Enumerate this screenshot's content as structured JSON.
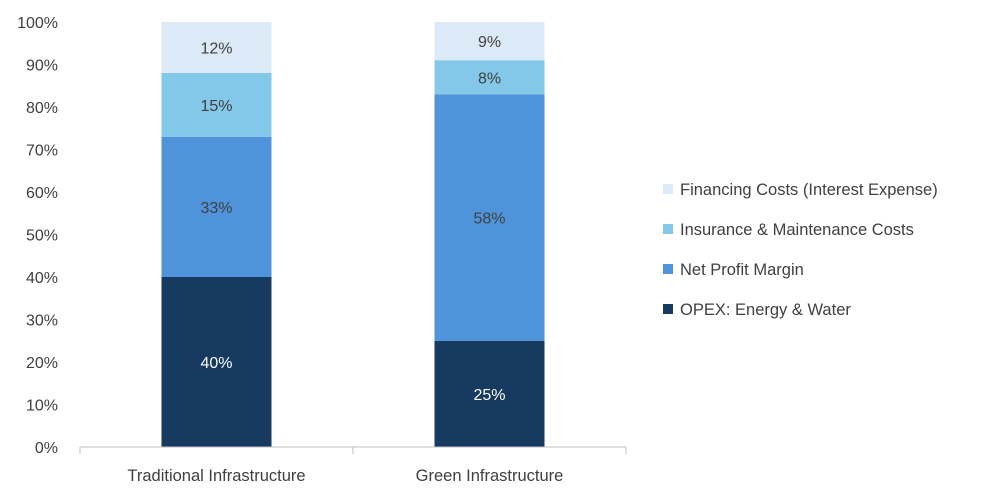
{
  "chart_data": {
    "type": "bar",
    "stacked": true,
    "categories": [
      "Traditional Infrastructure",
      "Green Infrastructure"
    ],
    "series": [
      {
        "name": "OPEX: Energy & Water",
        "values": [
          40,
          25
        ],
        "labels": [
          "40%",
          "25%"
        ],
        "color": "#173A61",
        "label_color": "#ffffff"
      },
      {
        "name": "Net Profit Margin",
        "values": [
          33,
          58
        ],
        "labels": [
          "33%",
          "58%"
        ],
        "color": "#4F94DA",
        "label_color": "#404040"
      },
      {
        "name": "Insurance & Maintenance Costs",
        "values": [
          15,
          8
        ],
        "labels": [
          "15%",
          "8%"
        ],
        "color": "#83C8E9",
        "label_color": "#404040"
      },
      {
        "name": "Financing Costs (Interest Expense)",
        "values": [
          12,
          9
        ],
        "labels": [
          "12%",
          "9%"
        ],
        "color": "#DCE9F6",
        "label_color": "#404040"
      }
    ],
    "ylim": [
      0,
      100
    ],
    "yticks": [
      "0%",
      "10%",
      "20%",
      "30%",
      "40%",
      "50%",
      "60%",
      "70%",
      "80%",
      "90%",
      "100%"
    ],
    "legend_position": "right",
    "grid": false
  }
}
